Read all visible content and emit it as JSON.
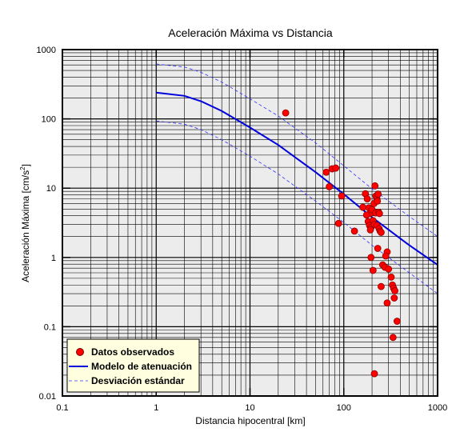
{
  "chart_data": {
    "type": "scatter",
    "title": "Aceleración Máxima vs Distancia",
    "xlabel": "Distancia hipocentral [km]",
    "ylabel": "Aceleración Máxima [cm/s",
    "ylabel_sup": "2",
    "ylabel_tail": "]",
    "x_scale": "log",
    "y_scale": "log",
    "xlim": [
      0.1,
      1000
    ],
    "ylim": [
      0.01,
      1000
    ],
    "x_ticks": [
      {
        "value": 0.1,
        "label": "0.1"
      },
      {
        "value": 1,
        "label": "1"
      },
      {
        "value": 10,
        "label": "10"
      },
      {
        "value": 100,
        "label": "100"
      },
      {
        "value": 1000,
        "label": "1000"
      }
    ],
    "y_ticks": [
      {
        "value": 0.01,
        "label": "0.01"
      },
      {
        "value": 0.1,
        "label": "0.1"
      },
      {
        "value": 1,
        "label": "1"
      },
      {
        "value": 10,
        "label": "10"
      },
      {
        "value": 100,
        "label": "100"
      },
      {
        "value": 1000,
        "label": "1000"
      }
    ],
    "grid": true,
    "background_color": "#ececec",
    "legend_position": "bottom-left",
    "legend_background": "#ffffe0",
    "legend": [
      {
        "label": "Datos observados",
        "kind": "marker",
        "color": "#ff0000"
      },
      {
        "label": "Modelo de atenuación",
        "kind": "line",
        "color": "#0000dd"
      },
      {
        "label": "Desviación estándar",
        "kind": "dashed",
        "color": "#3030ff"
      }
    ],
    "series": [
      {
        "name": "Datos observados",
        "kind": "scatter",
        "color": "#ff0000",
        "points": [
          [
            24,
            122
          ],
          [
            65,
            17
          ],
          [
            75,
            19
          ],
          [
            82,
            19.5
          ],
          [
            70,
            10.5
          ],
          [
            95,
            7.7
          ],
          [
            88,
            3.1
          ],
          [
            130,
            2.4
          ],
          [
            170,
            8.3
          ],
          [
            178,
            7
          ],
          [
            185,
            5.2
          ],
          [
            190,
            4.3
          ],
          [
            182,
            3.3
          ],
          [
            188,
            2.9
          ],
          [
            195,
            2.7
          ],
          [
            205,
            3.4
          ],
          [
            210,
            6
          ],
          [
            215,
            10.8
          ],
          [
            220,
            7.7
          ],
          [
            225,
            7.1
          ],
          [
            228,
            6.5
          ],
          [
            232,
            8.2
          ],
          [
            200,
            4.9
          ],
          [
            218,
            4.4
          ],
          [
            235,
            4.5
          ],
          [
            240,
            4.3
          ],
          [
            212,
            3.0
          ],
          [
            226,
            2.9
          ],
          [
            238,
            2.6
          ],
          [
            244,
            2.4
          ],
          [
            250,
            2.3
          ],
          [
            160,
            5.3
          ],
          [
            175,
            4.1
          ],
          [
            192,
            2.5
          ],
          [
            230,
            1.35
          ],
          [
            290,
            1.2
          ],
          [
            280,
            1.05
          ],
          [
            195,
            1.0
          ],
          [
            260,
            0.78
          ],
          [
            275,
            0.72
          ],
          [
            300,
            0.68
          ],
          [
            320,
            0.52
          ],
          [
            205,
            0.65
          ],
          [
            330,
            0.4
          ],
          [
            250,
            0.38
          ],
          [
            340,
            0.36
          ],
          [
            350,
            0.33
          ],
          [
            345,
            0.26
          ],
          [
            290,
            0.22
          ],
          [
            370,
            0.12
          ],
          [
            335,
            0.07
          ],
          [
            212,
            0.021
          ]
        ]
      },
      {
        "name": "Modelo de atenuación",
        "kind": "line",
        "color": "#0000dd",
        "points": [
          [
            1,
            240
          ],
          [
            2,
            215
          ],
          [
            3,
            180
          ],
          [
            5,
            130
          ],
          [
            10,
            75
          ],
          [
            20,
            42
          ],
          [
            50,
            17
          ],
          [
            100,
            8.2
          ],
          [
            200,
            3.8
          ],
          [
            500,
            1.5
          ],
          [
            1000,
            0.78
          ]
        ]
      },
      {
        "name": "Desviación estándar",
        "kind": "dashed",
        "color": "#3030ff",
        "points": [
          [
            1,
            620
          ],
          [
            2,
            560
          ],
          [
            3,
            470
          ],
          [
            5,
            340
          ],
          [
            10,
            195
          ],
          [
            20,
            110
          ],
          [
            50,
            45
          ],
          [
            100,
            21
          ],
          [
            200,
            9.8
          ],
          [
            500,
            3.9
          ],
          [
            1000,
            2.0
          ]
        ]
      },
      {
        "name": "Desviación estándar",
        "kind": "dashed",
        "color": "#3030ff",
        "points": [
          [
            1,
            93
          ],
          [
            2,
            84
          ],
          [
            3,
            70
          ],
          [
            5,
            50
          ],
          [
            10,
            29
          ],
          [
            20,
            16
          ],
          [
            50,
            6.5
          ],
          [
            100,
            3.2
          ],
          [
            200,
            1.5
          ],
          [
            500,
            0.6
          ],
          [
            1000,
            0.3
          ]
        ]
      }
    ]
  }
}
